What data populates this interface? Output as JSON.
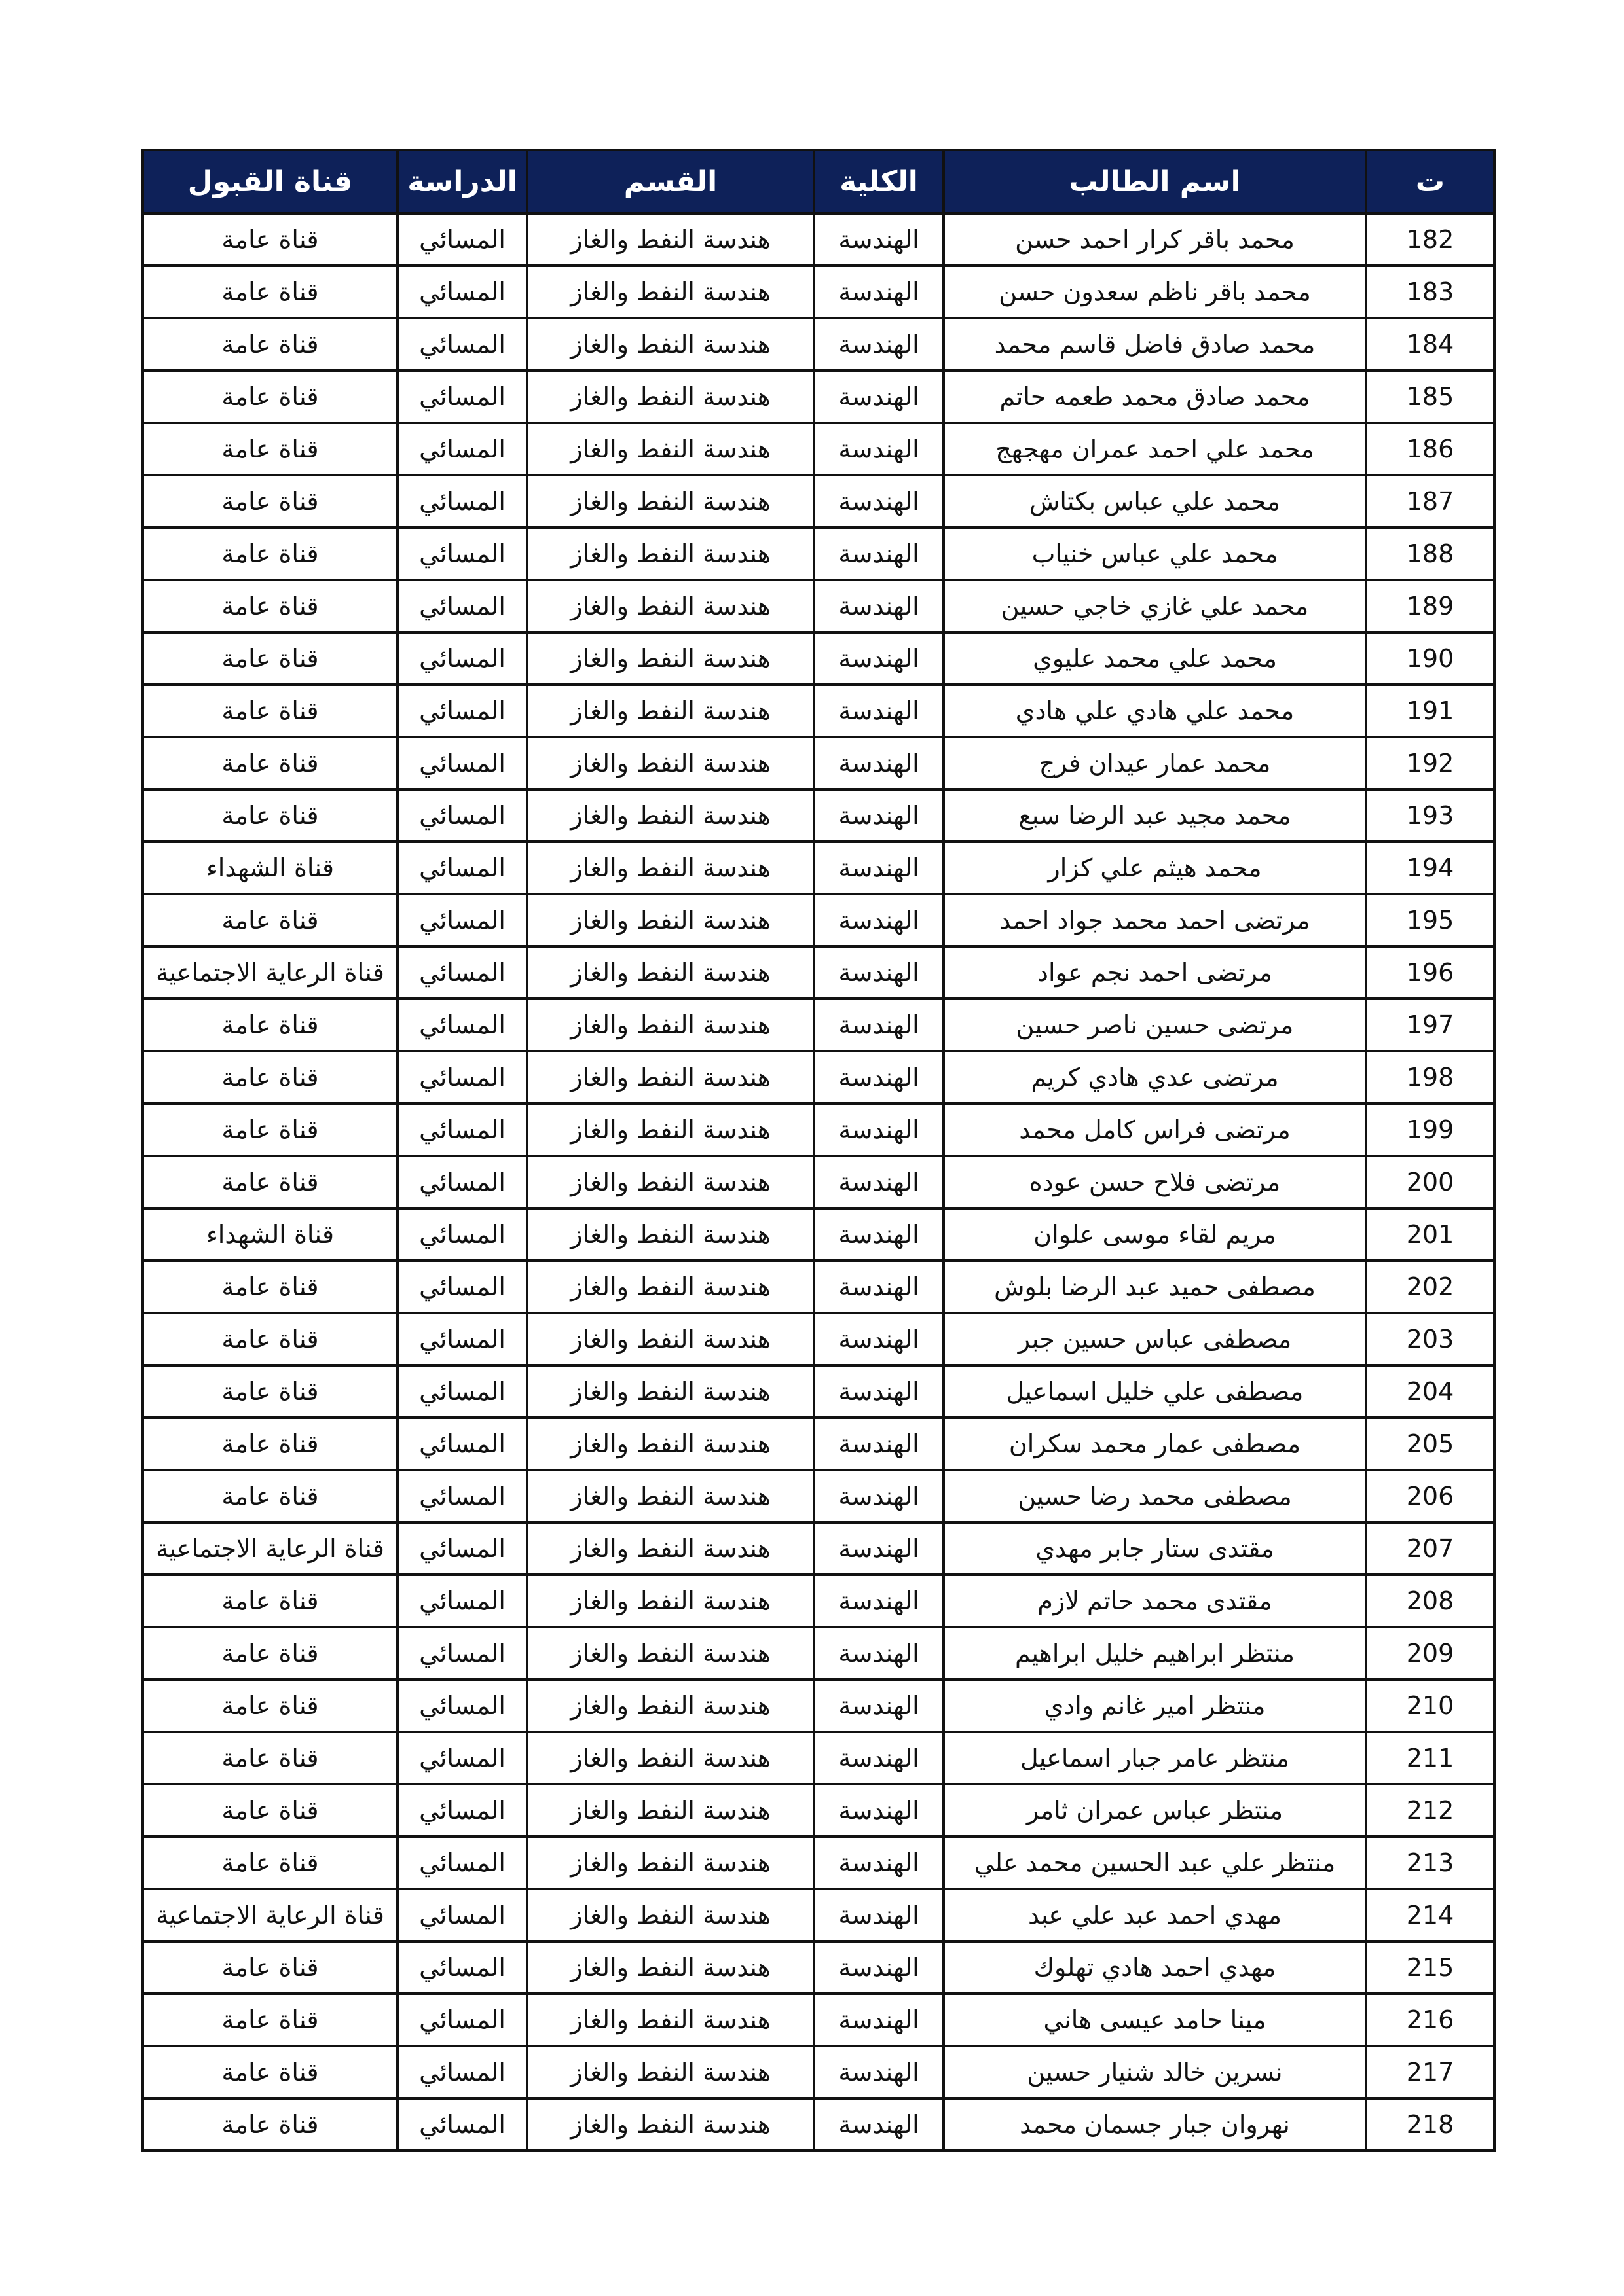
{
  "header_color": "#0e2159",
  "headers": [
    "ت",
    "اسم الطالب",
    "الكلية",
    "القسم",
    "الدراسة",
    "قناة القبول"
  ],
  "rows": [
    [
      "182",
      "محمد باقر كرار احمد حسن",
      "الهندسة",
      "هندسة النفط والغاز",
      "المسائي",
      "قناة عامة"
    ],
    [
      "183",
      "محمد باقر ناظم سعدون حسن",
      "الهندسة",
      "هندسة النفط والغاز",
      "المسائي",
      "قناة عامة"
    ],
    [
      "184",
      "محمد صادق فاضل قاسم محمد",
      "الهندسة",
      "هندسة النفط والغاز",
      "المسائي",
      "قناة عامة"
    ],
    [
      "185",
      "محمد صادق محمد طعمه حاتم",
      "الهندسة",
      "هندسة النفط والغاز",
      "المسائي",
      "قناة عامة"
    ],
    [
      "186",
      "محمد علي احمد عمران مهجهج",
      "الهندسة",
      "هندسة النفط والغاز",
      "المسائي",
      "قناة عامة"
    ],
    [
      "187",
      "محمد علي عباس بكتاش",
      "الهندسة",
      "هندسة النفط والغاز",
      "المسائي",
      "قناة عامة"
    ],
    [
      "188",
      "محمد علي عباس خنياب",
      "الهندسة",
      "هندسة النفط والغاز",
      "المسائي",
      "قناة عامة"
    ],
    [
      "189",
      "محمد علي غازي خاجي حسين",
      "الهندسة",
      "هندسة النفط والغاز",
      "المسائي",
      "قناة عامة"
    ],
    [
      "190",
      "محمد علي محمد عليوي",
      "الهندسة",
      "هندسة النفط والغاز",
      "المسائي",
      "قناة عامة"
    ],
    [
      "191",
      "محمد علي هادي علي هادي",
      "الهندسة",
      "هندسة النفط والغاز",
      "المسائي",
      "قناة عامة"
    ],
    [
      "192",
      "محمد عمار عيدان فرج",
      "الهندسة",
      "هندسة النفط والغاز",
      "المسائي",
      "قناة عامة"
    ],
    [
      "193",
      "محمد مجيد عبد الرضا سبع",
      "الهندسة",
      "هندسة النفط والغاز",
      "المسائي",
      "قناة عامة"
    ],
    [
      "194",
      "محمد هيثم علي كزار",
      "الهندسة",
      "هندسة النفط والغاز",
      "المسائي",
      "قناة الشهداء"
    ],
    [
      "195",
      "مرتضى احمد محمد جواد احمد",
      "الهندسة",
      "هندسة النفط والغاز",
      "المسائي",
      "قناة عامة"
    ],
    [
      "196",
      "مرتضى احمد نجم عواد",
      "الهندسة",
      "هندسة النفط والغاز",
      "المسائي",
      "قناة الرعاية الاجتماعية"
    ],
    [
      "197",
      "مرتضى حسين ناصر حسين",
      "الهندسة",
      "هندسة النفط والغاز",
      "المسائي",
      "قناة عامة"
    ],
    [
      "198",
      "مرتضى عدي هادي كريم",
      "الهندسة",
      "هندسة النفط والغاز",
      "المسائي",
      "قناة عامة"
    ],
    [
      "199",
      "مرتضى فراس كامل محمد",
      "الهندسة",
      "هندسة النفط والغاز",
      "المسائي",
      "قناة عامة"
    ],
    [
      "200",
      "مرتضى فلاح حسن عوده",
      "الهندسة",
      "هندسة النفط والغاز",
      "المسائي",
      "قناة عامة"
    ],
    [
      "201",
      "مريم لقاء موسى علوان",
      "الهندسة",
      "هندسة النفط والغاز",
      "المسائي",
      "قناة الشهداء"
    ],
    [
      "202",
      "مصطفى حميد عبد الرضا بلوش",
      "الهندسة",
      "هندسة النفط والغاز",
      "المسائي",
      "قناة عامة"
    ],
    [
      "203",
      "مصطفى عباس حسين جبر",
      "الهندسة",
      "هندسة النفط والغاز",
      "المسائي",
      "قناة عامة"
    ],
    [
      "204",
      "مصطفى علي خليل اسماعيل",
      "الهندسة",
      "هندسة النفط والغاز",
      "المسائي",
      "قناة عامة"
    ],
    [
      "205",
      "مصطفى عمار محمد سكران",
      "الهندسة",
      "هندسة النفط والغاز",
      "المسائي",
      "قناة عامة"
    ],
    [
      "206",
      "مصطفى محمد رضا حسين",
      "الهندسة",
      "هندسة النفط والغاز",
      "المسائي",
      "قناة عامة"
    ],
    [
      "207",
      "مقتدى ستار جابر مهدي",
      "الهندسة",
      "هندسة النفط والغاز",
      "المسائي",
      "قناة الرعاية الاجتماعية"
    ],
    [
      "208",
      "مقتدى محمد حاتم لازم",
      "الهندسة",
      "هندسة النفط والغاز",
      "المسائي",
      "قناة عامة"
    ],
    [
      "209",
      "منتظر ابراهيم خليل ابراهيم",
      "الهندسة",
      "هندسة النفط والغاز",
      "المسائي",
      "قناة عامة"
    ],
    [
      "210",
      "منتظر امير غانم وادي",
      "الهندسة",
      "هندسة النفط والغاز",
      "المسائي",
      "قناة عامة"
    ],
    [
      "211",
      "منتظر عامر جبار اسماعيل",
      "الهندسة",
      "هندسة النفط والغاز",
      "المسائي",
      "قناة عامة"
    ],
    [
      "212",
      "منتظر عباس عمران ثامر",
      "الهندسة",
      "هندسة النفط والغاز",
      "المسائي",
      "قناة عامة"
    ],
    [
      "213",
      "منتظر علي عبد الحسين محمد علي",
      "الهندسة",
      "هندسة النفط والغاز",
      "المسائي",
      "قناة عامة"
    ],
    [
      "214",
      "مهدي احمد عبد علي عبد",
      "الهندسة",
      "هندسة النفط والغاز",
      "المسائي",
      "قناة الرعاية الاجتماعية"
    ],
    [
      "215",
      "مهدي احمد هادي تهلوك",
      "الهندسة",
      "هندسة النفط والغاز",
      "المسائي",
      "قناة عامة"
    ],
    [
      "216",
      "مينا حامد عيسى هاني",
      "الهندسة",
      "هندسة النفط والغاز",
      "المسائي",
      "قناة عامة"
    ],
    [
      "217",
      "نسرين خالد شنيار حسين",
      "الهندسة",
      "هندسة النفط والغاز",
      "المسائي",
      "قناة عامة"
    ],
    [
      "218",
      "نهروان جبار جسمان محمد",
      "الهندسة",
      "هندسة النفط والغاز",
      "المسائي",
      "قناة عامة"
    ]
  ]
}
